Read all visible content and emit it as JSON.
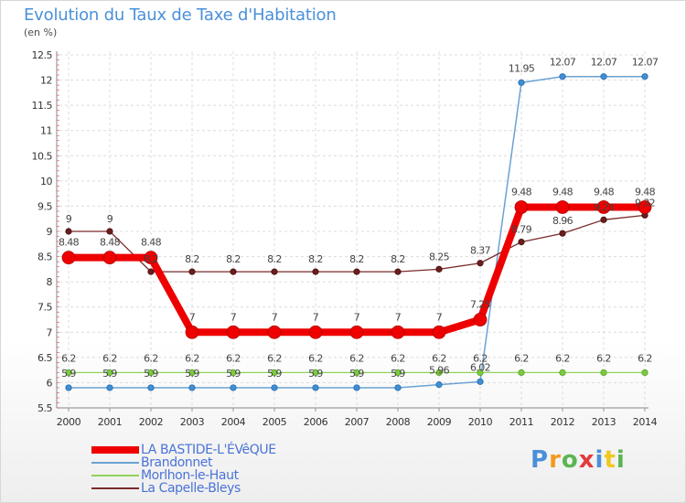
{
  "header": {
    "title": "Evolution du Taux de Taxe d'Habitation",
    "subtitle": "(en %)"
  },
  "brand": {
    "logo_text": "Proxiti",
    "letter_colors": [
      "#4a90d9",
      "#f29a1f",
      "#5ab552",
      "#e23b3b",
      "#4a90d9",
      "#f2c81f",
      "#5ab552"
    ]
  },
  "chart_data": {
    "type": "line",
    "title": "Evolution du Taux de Taxe d'Habitation",
    "subtitle": "(en %)",
    "xlabel": "",
    "ylabel": "",
    "x": [
      "2000",
      "2001",
      "2002",
      "2003",
      "2004",
      "2005",
      "2006",
      "2007",
      "2008",
      "2009",
      "2010",
      "2011",
      "2012",
      "2013",
      "2014"
    ],
    "ylim": [
      5.5,
      12.5
    ],
    "yticks": [
      "5.5",
      "6",
      "6.5",
      "7",
      "7.5",
      "8",
      "8.5",
      "9",
      "9.5",
      "10",
      "10.5",
      "11",
      "11.5",
      "12",
      "12.5"
    ],
    "grid": true,
    "legend": "bottom-left",
    "series": [
      {
        "name": "LA BASTIDE-L'ÉVêQUE",
        "color": "#ee0000",
        "values": [
          8.48,
          8.48,
          8.48,
          7,
          7,
          7,
          7,
          7,
          7,
          7,
          7.25,
          9.48,
          9.48,
          9.48,
          9.48
        ],
        "labels": [
          "8.48",
          "8.48",
          "8.48",
          "7",
          "7",
          "7",
          "7",
          "7",
          "7",
          "7",
          "7.25",
          "9.48",
          "9.48",
          "9.48",
          "9.48"
        ]
      },
      {
        "name": "Brandonnet",
        "color": "#6aa2d2",
        "values": [
          5.9,
          5.9,
          5.9,
          5.9,
          5.9,
          5.9,
          5.9,
          5.9,
          5.9,
          5.96,
          6.02,
          11.95,
          12.07,
          12.07,
          12.07
        ],
        "labels": [
          "5.9",
          "5.9",
          "5.9",
          "5.9",
          "5.9",
          "5.9",
          "5.9",
          "5.9",
          "5.9",
          "5.96",
          "6.02",
          "11.95",
          "12.07",
          "12.07",
          "12.07"
        ]
      },
      {
        "name": "Morlhon-le-Haut",
        "color": "#8fd35a",
        "values": [
          6.2,
          6.2,
          6.2,
          6.2,
          6.2,
          6.2,
          6.2,
          6.2,
          6.2,
          6.2,
          6.2,
          6.2,
          6.2,
          6.2,
          6.2
        ],
        "labels": [
          "6.2",
          "6.2",
          "6.2",
          "6.2",
          "6.2",
          "6.2",
          "6.2",
          "6.2",
          "6.2",
          "6.2",
          "6.2",
          "6.2",
          "6.2",
          "6.2",
          "6.2"
        ]
      },
      {
        "name": "La Capelle-Bleys",
        "color": "#7a2a2a",
        "values": [
          9,
          9,
          8.2,
          8.2,
          8.2,
          8.2,
          8.2,
          8.2,
          8.2,
          8.25,
          8.37,
          8.79,
          8.96,
          9.23,
          9.32
        ],
        "labels": [
          "9",
          "9",
          "8.2",
          "8.2",
          "8.2",
          "8.2",
          "8.2",
          "8.2",
          "8.2",
          "8.25",
          "8.37",
          "8.79",
          "8.96",
          "9.23",
          "9.32"
        ]
      }
    ]
  }
}
